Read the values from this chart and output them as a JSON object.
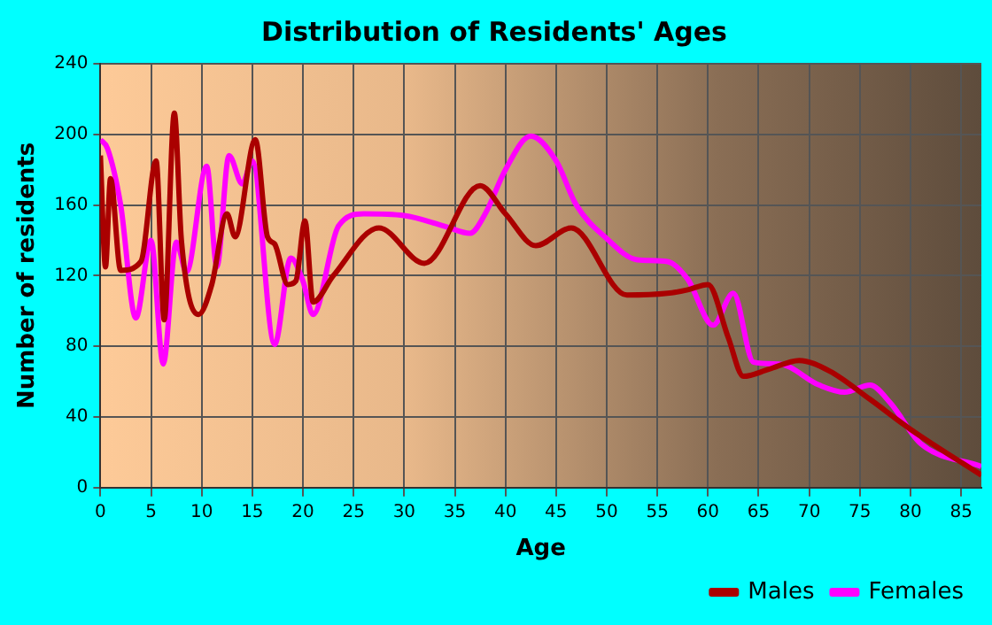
{
  "chart_data": {
    "type": "line",
    "title": "Distribution of Residents' Ages",
    "xlabel": "Age",
    "ylabel": "Number of residents",
    "xlim": [
      0,
      87
    ],
    "xticks": [
      0,
      5,
      10,
      15,
      20,
      25,
      30,
      35,
      40,
      45,
      50,
      55,
      60,
      65,
      70,
      75,
      80,
      85
    ],
    "ylim": [
      0,
      240
    ],
    "yticks": [
      0,
      40,
      80,
      120,
      160,
      200,
      240
    ],
    "grid": true,
    "legend": "bottom right",
    "marker": "none",
    "line_style": "solid",
    "series": [
      {
        "name": "Males",
        "color": "#aa0000",
        "x": [
          0,
          0.5,
          1,
          2,
          4,
          5.5,
          6.3,
          7.3,
          8,
          9.7,
          11,
          12.5,
          13.3,
          15.3,
          16.5,
          17.2,
          18.5,
          19.3,
          20.2,
          21,
          23,
          27.5,
          32,
          37.5,
          40,
          43,
          46.5,
          52,
          56,
          58,
          60,
          62,
          63.5,
          66,
          69,
          72,
          76,
          80,
          87
        ],
        "values": [
          188,
          125,
          175,
          123,
          128,
          185,
          95,
          212,
          140,
          98,
          115,
          155,
          142,
          197,
          142,
          138,
          115,
          117,
          151,
          105,
          120,
          147,
          127,
          171,
          155,
          137,
          147,
          109,
          110,
          112,
          115,
          85,
          63,
          67,
          72,
          66,
          50,
          33,
          7
        ]
      },
      {
        "name": "Females",
        "color": "#ff00ff",
        "x": [
          0,
          0.7,
          2,
          3.5,
          5,
          6.2,
          7.5,
          8.5,
          10.5,
          11.5,
          12.7,
          14,
          15,
          17.2,
          18.8,
          20,
          21,
          23.5,
          26,
          30,
          34,
          36.5,
          38,
          40,
          42.5,
          45,
          47,
          50,
          53,
          56,
          58,
          60.5,
          62.5,
          64.5,
          67,
          71,
          73.5,
          76,
          78,
          81,
          87
        ],
        "values": [
          197,
          192,
          160,
          96,
          140,
          70,
          139,
          122,
          182,
          125,
          188,
          172,
          185,
          81,
          130,
          117,
          98,
          148,
          155,
          154,
          148,
          144,
          155,
          180,
          199,
          185,
          160,
          141,
          129,
          128,
          118,
          92,
          110,
          71,
          70,
          58,
          54,
          58,
          48,
          25,
          12
        ]
      }
    ]
  }
}
